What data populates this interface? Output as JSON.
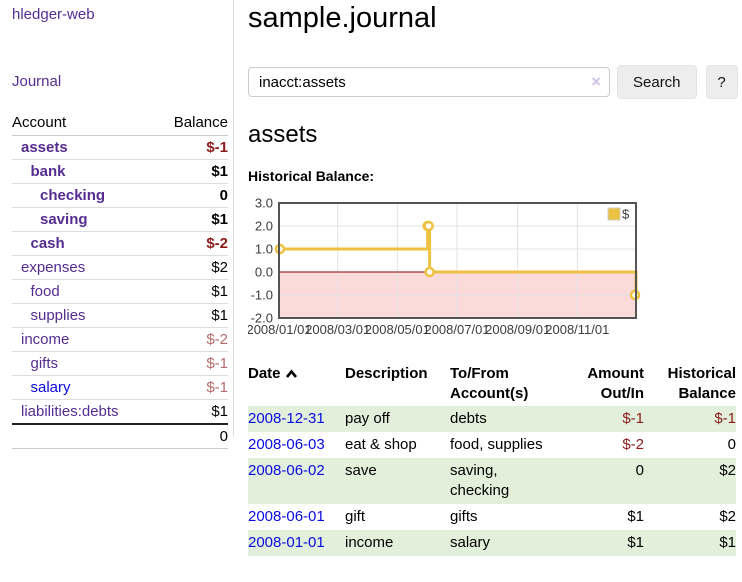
{
  "colors": {
    "link_visited": "#552d90",
    "link": "#0b0be0",
    "negative_strong": "#8b1c1c",
    "negative_soft": "#b46c6c",
    "row_green": "#e2efda",
    "series_yellow": "#EDC240",
    "zero_line": "#8b0000",
    "negative_fill": "#fbdada",
    "chart_border": "#545454",
    "grid": "#e3e3e3",
    "button_bg": "#ededed",
    "tick_text": "#3c3c3c"
  },
  "sidebar": {
    "brand": "hledger-web",
    "journal_link": "Journal",
    "accounts": {
      "headers": {
        "account": "Account",
        "balance": "Balance"
      },
      "rows": [
        {
          "account": "assets",
          "balance": "$-1",
          "indent": 1,
          "bold": true,
          "negative": true,
          "link": "purple"
        },
        {
          "account": "bank",
          "balance": "$1",
          "indent": 2,
          "bold": true,
          "negative": false,
          "link": "purple"
        },
        {
          "account": "checking",
          "balance": "0",
          "indent": 3,
          "bold": true,
          "negative": false,
          "link": "purple"
        },
        {
          "account": "saving",
          "balance": "$1",
          "indent": 3,
          "bold": true,
          "negative": false,
          "link": "purple"
        },
        {
          "account": "cash",
          "balance": "$-2",
          "indent": 2,
          "bold": true,
          "negative": true,
          "link": "purple"
        },
        {
          "account": "expenses",
          "balance": "$2",
          "indent": 1,
          "bold": false,
          "negative": false,
          "link": "purple"
        },
        {
          "account": "food",
          "balance": "$1",
          "indent": 2,
          "bold": false,
          "negative": false,
          "link": "purple"
        },
        {
          "account": "supplies",
          "balance": "$1",
          "indent": 2,
          "bold": false,
          "negative": false,
          "link": "purple"
        },
        {
          "account": "income",
          "balance": "$-2",
          "indent": 1,
          "bold": false,
          "negative": true,
          "link": "purple"
        },
        {
          "account": "gifts",
          "balance": "$-1",
          "indent": 2,
          "bold": false,
          "negative": true,
          "link": "purple"
        },
        {
          "account": "salary",
          "balance": "$-1",
          "indent": 2,
          "bold": false,
          "negative": true,
          "link": "blue"
        },
        {
          "account": "liabilities:debts",
          "balance": "$1",
          "indent": 1,
          "bold": false,
          "negative": false,
          "link": "purple"
        }
      ],
      "total": "0"
    }
  },
  "main": {
    "title": "sample.journal",
    "search": {
      "value": "inacct:assets",
      "clear_icon": "×",
      "button_label": "Search",
      "help_label": "?"
    },
    "section_title": "assets",
    "chart_label": "Historical Balance:"
  },
  "chart_data": {
    "type": "line",
    "title": "Historical Balance of assets",
    "style": "step",
    "ylim": [
      -2,
      3
    ],
    "x_domain_days": [
      0,
      365
    ],
    "yticks": [
      "3.0",
      "2.0",
      "1.0",
      "0.0",
      "-1.0",
      "-2.0"
    ],
    "ytick_values": [
      3,
      2,
      1,
      0,
      -1,
      -2
    ],
    "xticks": [
      "2008/01/01",
      "2008/03/01",
      "2008/05/01",
      "2008/07/01",
      "2008/09/01",
      "2008/11/01"
    ],
    "xtick_days": [
      0,
      60,
      121,
      182,
      244,
      305
    ],
    "grid": true,
    "legend_position": "top-right",
    "series": [
      {
        "name": "$",
        "points_dates": [
          "2008-01-01",
          "2008-06-01",
          "2008-06-02",
          "2008-06-03",
          "2008-12-31"
        ],
        "points_days": [
          0,
          152,
          153,
          154,
          365
        ],
        "values": [
          1,
          2,
          2,
          0,
          -1
        ]
      }
    ],
    "negative_region_shaded": true
  },
  "register": {
    "headers": {
      "date": "Date",
      "description": "Description",
      "account": "To/From Account(s)",
      "amount": "Amount Out/In",
      "balance": "Historical Balance"
    },
    "rows": [
      {
        "date": "2008-12-31",
        "description": "pay off",
        "accounts": [
          "debts"
        ],
        "amount": "$-1",
        "balance": "$-1"
      },
      {
        "date": "2008-06-03",
        "description": "eat & shop",
        "accounts": [
          "food",
          "supplies"
        ],
        "amount": "$-2",
        "balance": "0"
      },
      {
        "date": "2008-06-02",
        "description": "save",
        "accounts": [
          "saving",
          "checking"
        ],
        "amount": "0",
        "balance": "$2"
      },
      {
        "date": "2008-06-01",
        "description": "gift",
        "accounts": [
          "gifts"
        ],
        "amount": "$1",
        "balance": "$2"
      },
      {
        "date": "2008-01-01",
        "description": "income",
        "accounts": [
          "salary"
        ],
        "amount": "$1",
        "balance": "$1"
      }
    ]
  }
}
